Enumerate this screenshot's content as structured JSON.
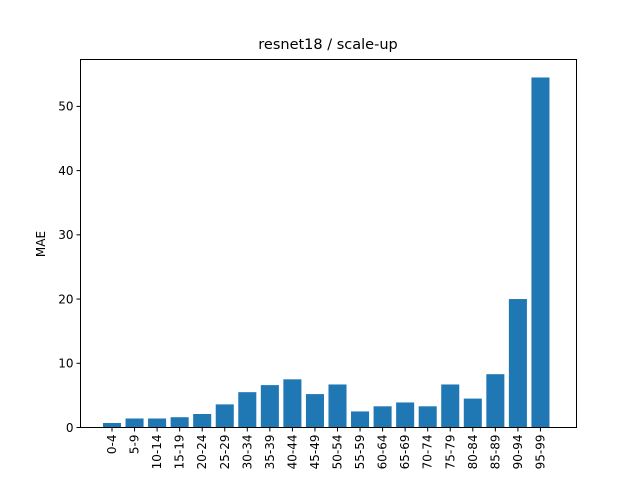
{
  "chart_data": {
    "type": "bar",
    "title": "resnet18 / scale-up",
    "xlabel": "",
    "ylabel": "MAE",
    "categories": [
      "0-4",
      "5-9",
      "10-14",
      "15-19",
      "20-24",
      "25-29",
      "30-34",
      "35-39",
      "40-44",
      "45-49",
      "50-54",
      "55-59",
      "60-64",
      "65-69",
      "70-74",
      "75-79",
      "80-84",
      "85-89",
      "90-94",
      "95-99"
    ],
    "values": [
      0.7,
      1.4,
      1.4,
      1.6,
      2.1,
      3.6,
      5.5,
      6.6,
      7.5,
      5.2,
      6.7,
      2.5,
      3.3,
      3.9,
      3.3,
      6.7,
      4.5,
      8.3,
      20.0,
      54.5
    ],
    "ylim": [
      0,
      57.3
    ],
    "yticks": [
      0,
      10,
      20,
      30,
      40,
      50
    ],
    "grid": false,
    "bar_color": "#1f77b4"
  }
}
